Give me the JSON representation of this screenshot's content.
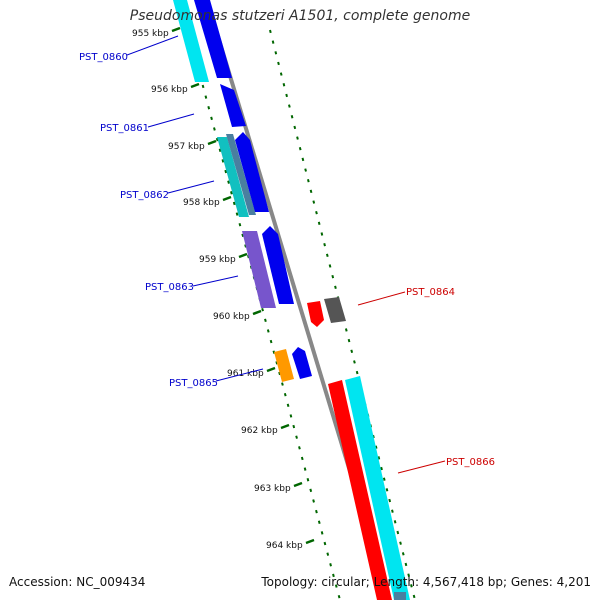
{
  "title": "Pseudomonas stutzeri A1501, complete genome",
  "accession": "Accession: NC_009434",
  "summary": "Topology: circular; Length: 4,567,418 bp; Genes: 4,201",
  "colors": {
    "backbone": "#888888",
    "plus_strand_label": "#0000cc",
    "minus_strand_label": "#cc0000",
    "tick": "#006600",
    "blue": "#0000ee",
    "cyan": "#00e5f0",
    "teal": "#11c0c0",
    "slate": "#4a7fa0",
    "purple": "#7755cc",
    "orange": "#ff9900",
    "red": "#ff0000",
    "gray": "#555555"
  },
  "ruler": [
    {
      "label": "955 kbp"
    },
    {
      "label": "956 kbp"
    },
    {
      "label": "957 kbp"
    },
    {
      "label": "958 kbp"
    },
    {
      "label": "959 kbp"
    },
    {
      "label": "960 kbp"
    },
    {
      "label": "961 kbp"
    },
    {
      "label": "962 kbp"
    },
    {
      "label": "963 kbp"
    },
    {
      "label": "964 kbp"
    }
  ],
  "gene_labels": [
    {
      "name": "PST_0860",
      "strand": "plus"
    },
    {
      "name": "PST_0861",
      "strand": "plus"
    },
    {
      "name": "PST_0862",
      "strand": "plus"
    },
    {
      "name": "PST_0863",
      "strand": "plus"
    },
    {
      "name": "PST_0864",
      "strand": "minus"
    },
    {
      "name": "PST_0865",
      "strand": "plus"
    },
    {
      "name": "PST_0866",
      "strand": "minus"
    }
  ]
}
